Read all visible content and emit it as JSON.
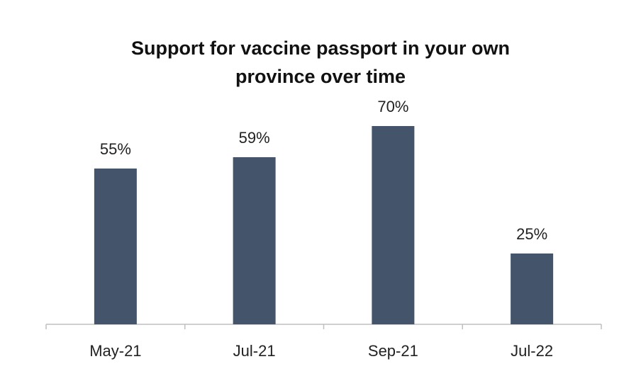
{
  "chart_data": {
    "type": "bar",
    "title_lines": [
      "Support for vaccine passport  in your own",
      "province over time"
    ],
    "categories": [
      "May-21",
      "Jul-21",
      "Sep-21",
      "Jul-22"
    ],
    "values": [
      55,
      59,
      70,
      25
    ],
    "value_labels": [
      "55%",
      "59%",
      "70%",
      "25%"
    ],
    "ylim": [
      0,
      80
    ],
    "bar_color": "#44546a",
    "axis_color": "#bfbfbf",
    "grid": false,
    "legend": "none"
  }
}
